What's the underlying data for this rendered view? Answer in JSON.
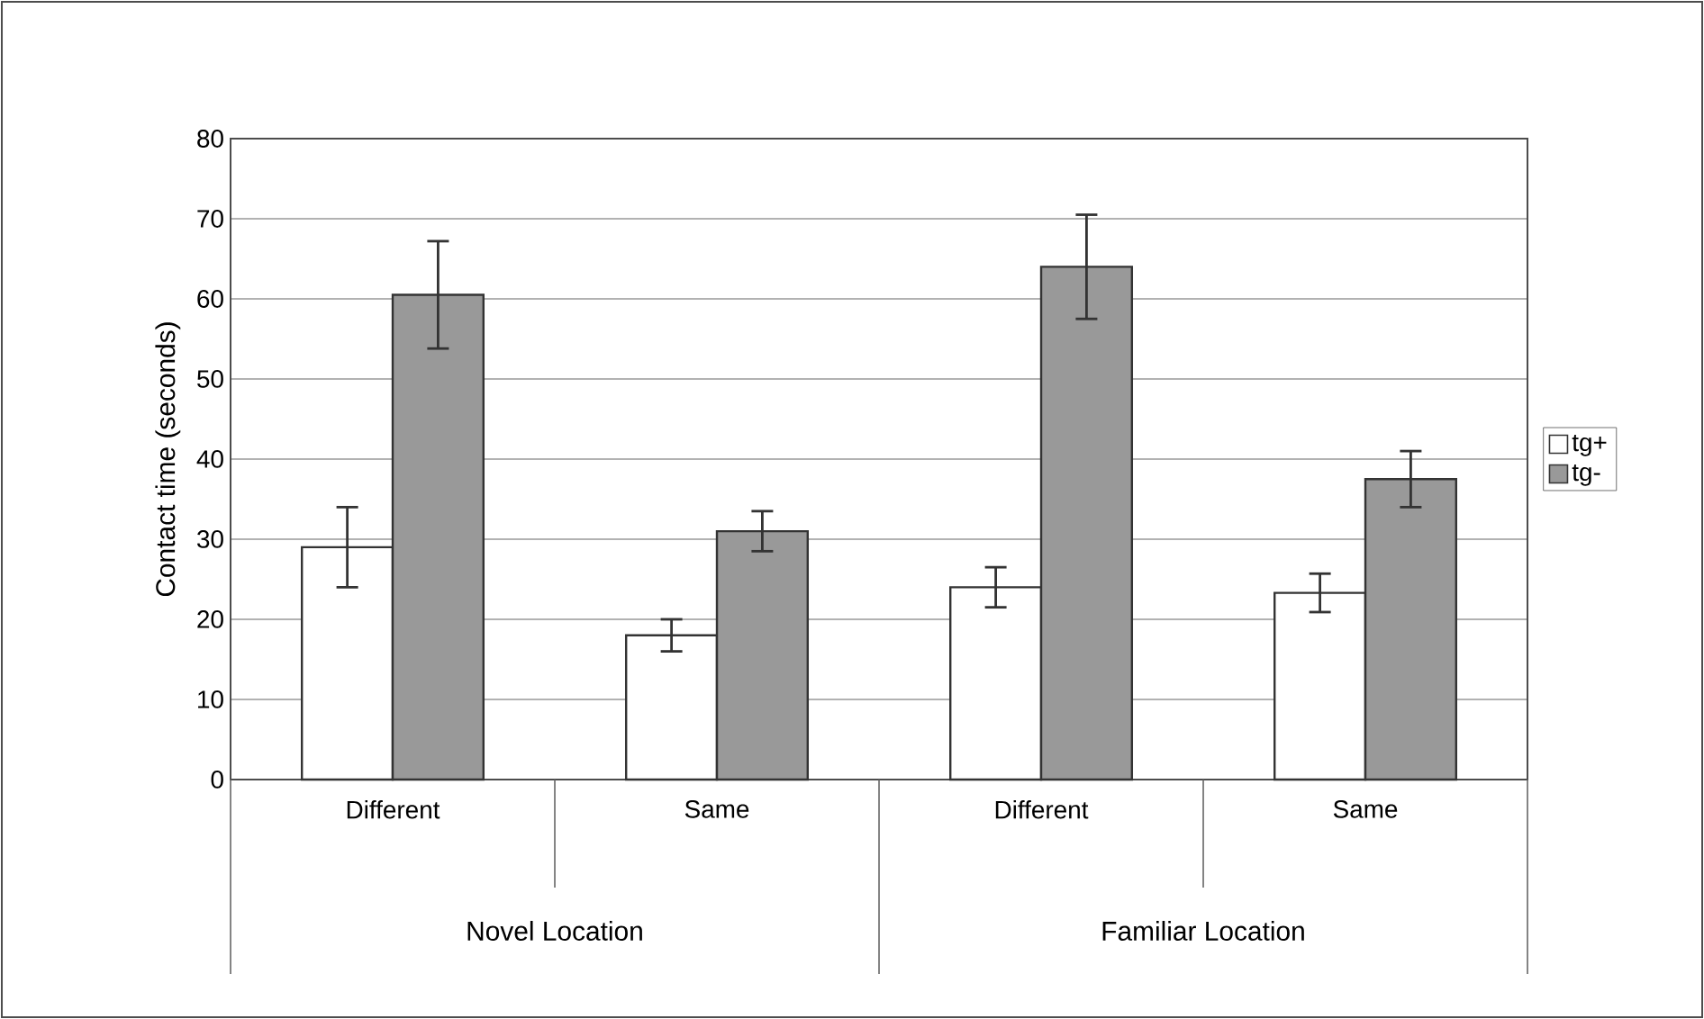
{
  "chart_data": {
    "type": "bar",
    "ylabel": "Contact time (seconds)",
    "categories": [
      "Different",
      "Same",
      "Different",
      "Same"
    ],
    "annotations": [
      "Novel Location",
      "Familiar Location"
    ],
    "series": [
      {
        "name": "tg+",
        "color": "#ffffff",
        "values": [
          29,
          18,
          24,
          23.3
        ],
        "errors": [
          5,
          2,
          2.5,
          2.4
        ]
      },
      {
        "name": "tg-",
        "color": "#999999",
        "values": [
          60.5,
          31,
          64,
          37.5
        ],
        "errors": [
          6.7,
          2.5,
          6.5,
          3.5
        ]
      }
    ],
    "ylim": [
      0,
      80
    ],
    "yticks": [
      0,
      10,
      20,
      30,
      40,
      50,
      60,
      70,
      80
    ],
    "grid": "y",
    "legend": "right"
  }
}
